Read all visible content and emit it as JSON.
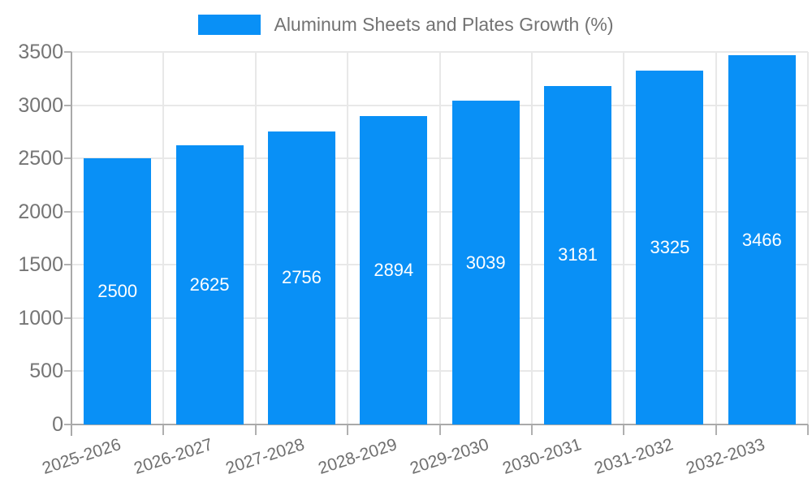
{
  "legend": {
    "label": "Aluminum Sheets and Plates Growth (%)"
  },
  "chart_data": {
    "type": "bar",
    "title": "",
    "xlabel": "",
    "ylabel": "",
    "categories": [
      "2025-2026",
      "2026-2027",
      "2027-2028",
      "2028-2029",
      "2029-2030",
      "2030-2031",
      "2031-2032",
      "2032-2033"
    ],
    "series": [
      {
        "name": "Aluminum Sheets and Plates Growth (%)",
        "values": [
          2500,
          2625,
          2756,
          2894,
          3039,
          3181,
          3325,
          3466
        ]
      }
    ],
    "value_labels": [
      2500,
      2625,
      2756,
      2894,
      3039,
      3181,
      3325,
      3466
    ],
    "ylim": [
      0,
      3500
    ],
    "yticks": [
      0,
      500,
      1000,
      1500,
      2000,
      2500,
      3000,
      3500
    ],
    "grid": true,
    "legend_position": "top-center",
    "bar_color": "#0990f6",
    "value_label_color": "#ffffff"
  },
  "colors": {
    "grid": "#e8e8e8",
    "axis": "#a9a9a9",
    "tick": "#b0b0b0",
    "y_label": "#757575",
    "x_label": "#6f6f6f",
    "legend_text": "#737373",
    "background": "#ffffff"
  }
}
